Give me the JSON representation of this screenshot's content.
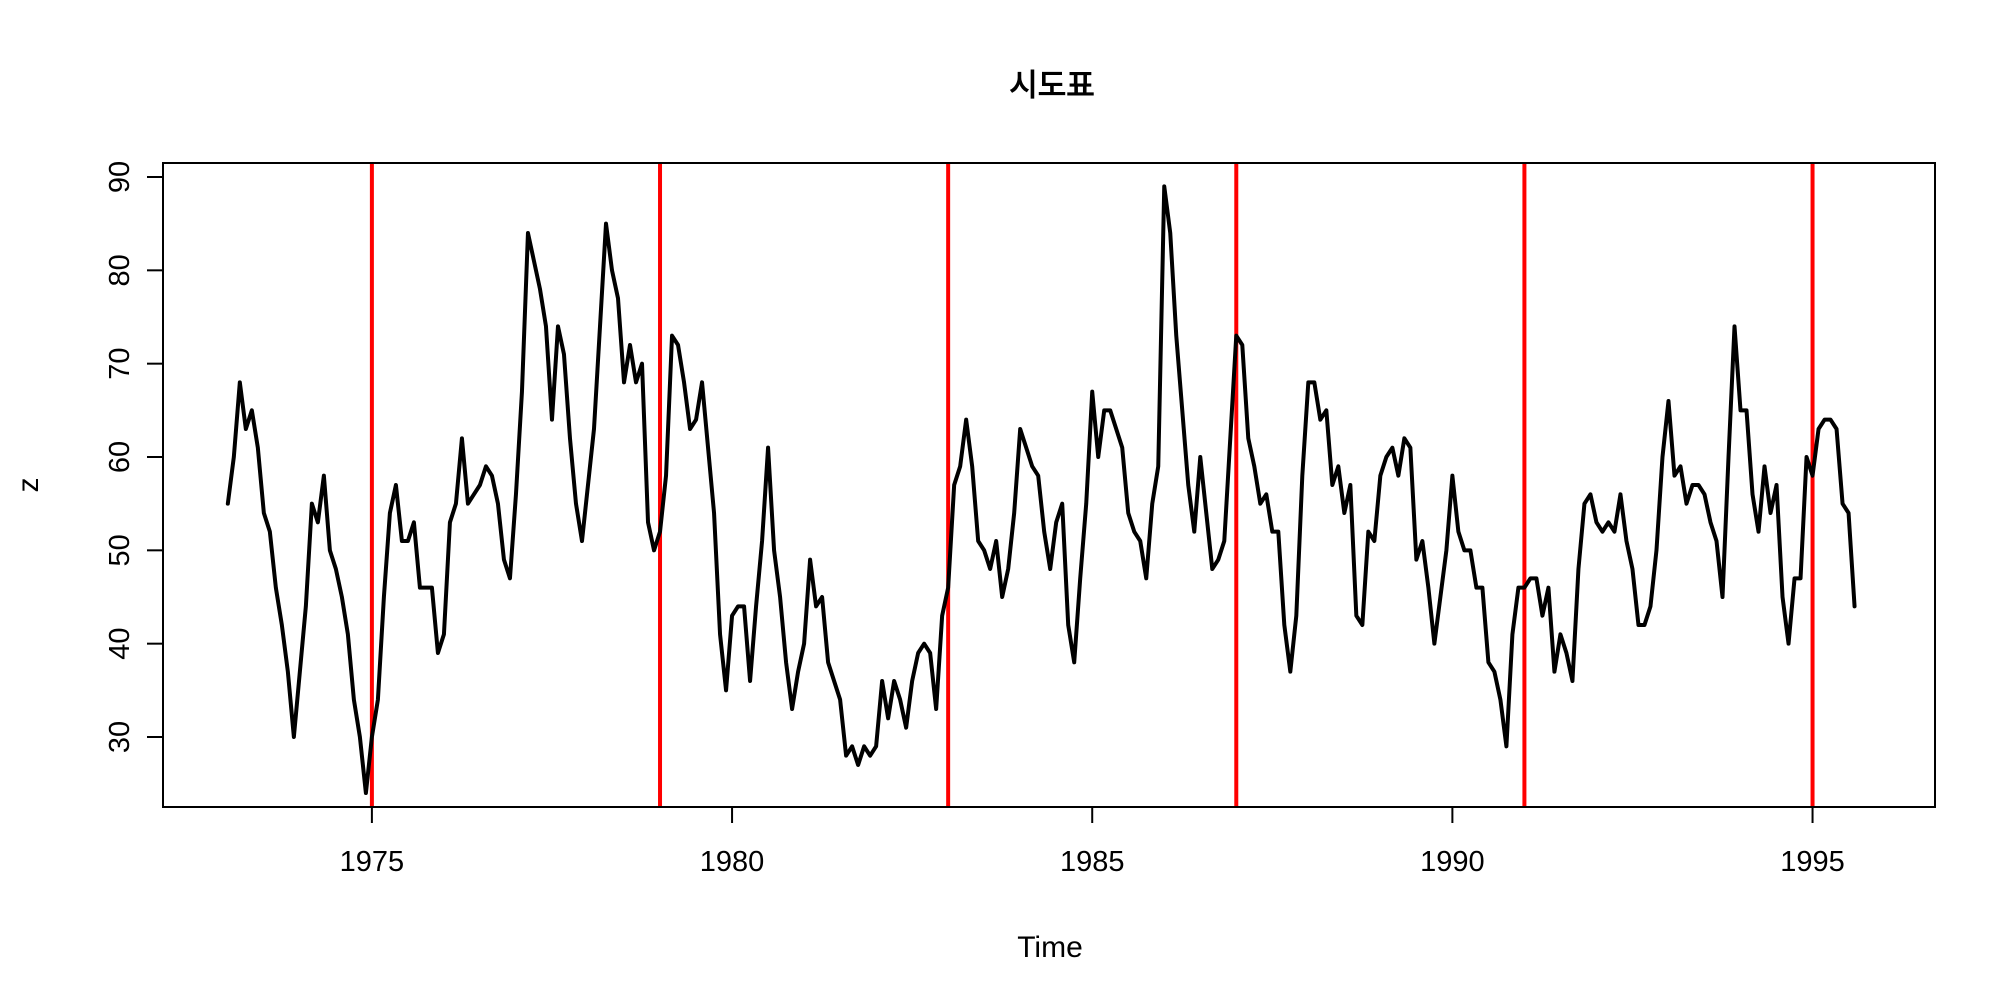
{
  "chart_data": {
    "type": "line",
    "title": "시도표",
    "xlabel": "Time",
    "ylabel": "z",
    "xlim": [
      1972.1,
      1996.7
    ],
    "ylim": [
      22.5,
      91.5
    ],
    "x_ticks": [
      1975,
      1980,
      1985,
      1990,
      1995
    ],
    "y_ticks": [
      30,
      40,
      50,
      60,
      70,
      80,
      90
    ],
    "x_start": 1973.0,
    "x_step": 0.083333333,
    "series": [
      {
        "color": "#000000",
        "values": [
          55,
          60,
          68,
          63,
          65,
          61,
          54,
          52,
          46,
          42,
          37,
          30,
          37,
          44,
          55,
          53,
          58,
          50,
          48,
          45,
          41,
          34,
          30,
          24,
          30,
          34,
          45,
          54,
          57,
          51,
          51,
          53,
          46,
          46,
          46,
          39,
          41,
          53,
          55,
          62,
          55,
          56,
          57,
          59,
          58,
          55,
          49,
          47,
          56,
          67,
          84,
          81,
          78,
          74,
          64,
          74,
          71,
          62,
          55,
          51,
          57,
          63,
          74,
          85,
          80,
          77,
          68,
          72,
          68,
          70,
          53,
          50,
          52,
          58,
          73,
          72,
          68,
          63,
          64,
          68,
          61,
          54,
          41,
          35,
          43,
          44,
          44,
          36,
          44,
          51,
          61,
          50,
          45,
          38,
          33,
          37,
          40,
          49,
          44,
          45,
          38,
          36,
          34,
          28,
          29,
          27,
          29,
          28,
          29,
          36,
          32,
          36,
          34,
          31,
          36,
          39,
          40,
          39,
          33,
          43,
          46,
          57,
          59,
          64,
          59,
          51,
          50,
          48,
          51,
          45,
          48,
          54,
          63,
          61,
          59,
          58,
          52,
          48,
          53,
          55,
          42,
          38,
          47,
          55,
          67,
          60,
          65,
          65,
          63,
          61,
          54,
          52,
          51,
          47,
          55,
          59,
          89,
          84,
          73,
          65,
          57,
          52,
          60,
          54,
          48,
          49,
          51,
          62,
          73,
          72,
          62,
          59,
          55,
          56,
          52,
          52,
          42,
          37,
          43,
          58,
          68,
          68,
          64,
          65,
          57,
          59,
          54,
          57,
          43,
          42,
          52,
          51,
          58,
          60,
          61,
          58,
          62,
          61,
          49,
          51,
          46,
          40,
          45,
          50,
          58,
          52,
          50,
          50,
          46,
          46,
          38,
          37,
          34,
          29,
          41,
          46,
          46,
          47,
          47,
          43,
          46,
          37,
          41,
          39,
          36,
          48,
          55,
          56,
          53,
          52,
          53,
          52,
          56,
          51,
          48,
          42,
          42,
          44,
          50,
          60,
          66,
          58,
          59,
          55,
          57,
          57,
          56,
          53,
          51,
          45,
          60,
          74,
          65,
          65,
          56,
          52,
          59,
          54,
          57,
          45,
          40,
          47,
          47,
          60,
          58,
          63,
          64,
          64,
          63,
          55,
          54,
          44
        ]
      }
    ],
    "vlines": {
      "color": "#ff0000",
      "x": [
        1975,
        1979,
        1983,
        1987,
        1991,
        1995
      ]
    },
    "grid": false,
    "legend": "none"
  }
}
